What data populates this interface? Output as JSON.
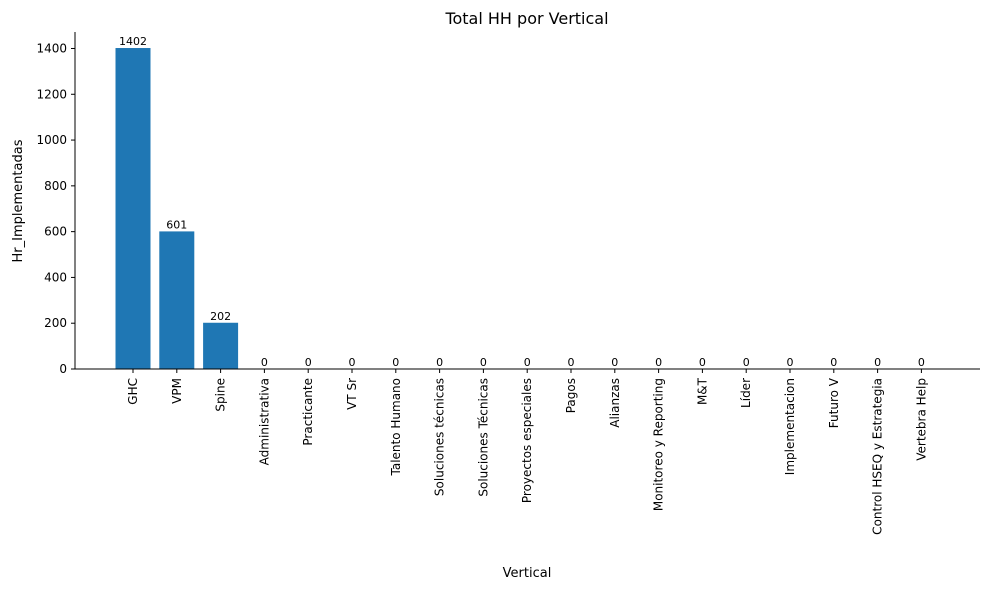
{
  "chart_data": {
    "type": "bar",
    "title": "Total HH por Vertical",
    "xlabel": "Vertical",
    "ylabel": "Hr_Implementadas",
    "categories": [
      "GHC",
      "VPM",
      "Spine",
      "Administrativa",
      "Practicante",
      "VT Sr",
      "Talento Humano",
      "Soluciones técnicas",
      "Soluciones Técnicas",
      "Proyectos especiales",
      "Pagos",
      "Alianzas",
      "Monitoreo y Reporting",
      "M&T",
      "Líder",
      "Implementacion",
      "Futuro V",
      "Control HSEQ y Estrategia",
      "Vertebra Help"
    ],
    "values": [
      1402,
      601,
      202,
      0,
      0,
      0,
      0,
      0,
      0,
      0,
      0,
      0,
      0,
      0,
      0,
      0,
      0,
      0,
      0
    ],
    "data_labels": [
      "1402",
      "601",
      "202",
      "0",
      "0",
      "0",
      "0",
      "0",
      "0",
      "0",
      "0",
      "0",
      "0",
      "0",
      "0",
      "0",
      "0",
      "0",
      "0"
    ],
    "yticks": [
      0,
      200,
      400,
      600,
      800,
      1000,
      1200,
      1400
    ],
    "ylim": [
      0,
      1472
    ],
    "grid": false,
    "bar_color": "#1f77b4"
  }
}
